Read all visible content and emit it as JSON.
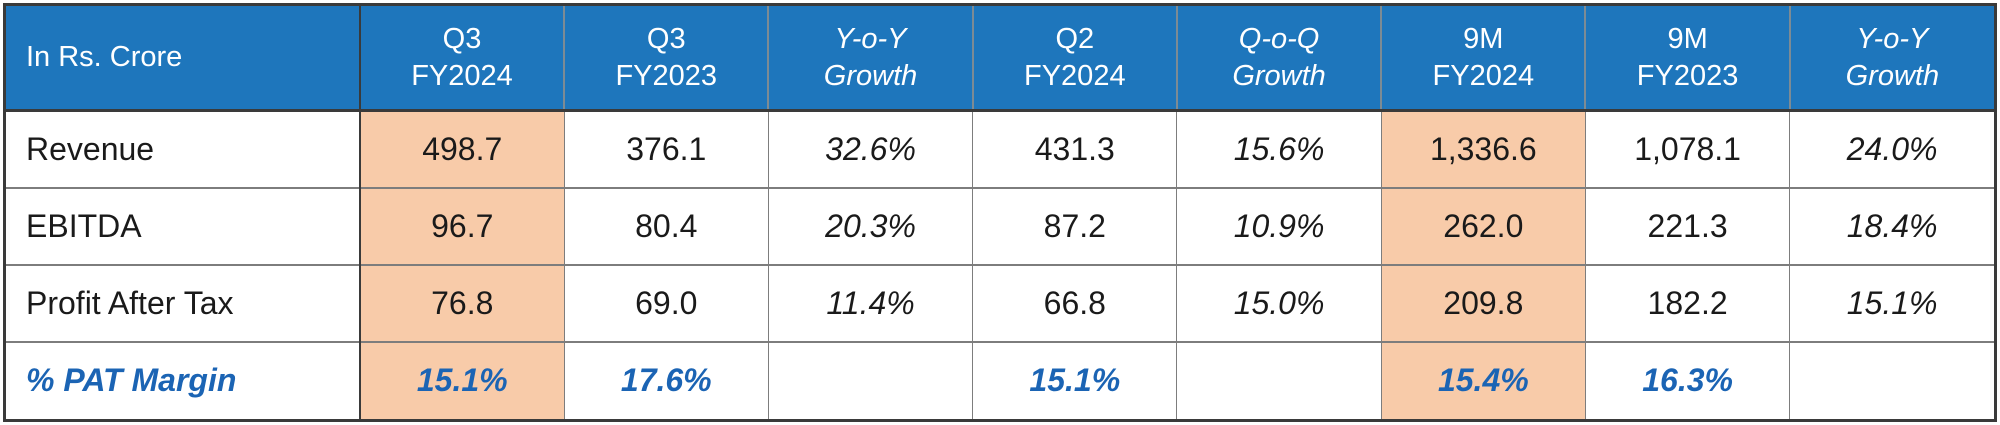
{
  "colors": {
    "header_bg": "#1e76bc",
    "header_text": "#ffffff",
    "highlight_bg": "#f8cba9",
    "margin_row_text": "#1b64b4",
    "grid_line": "#7d7d7d",
    "outer_border": "#3a3a3a",
    "body_text": "#1a1a1a"
  },
  "table": {
    "corner_label": "In Rs. Crore",
    "columns": [
      {
        "id": "q3-fy2024",
        "line1": "Q3",
        "line2": "FY2024",
        "italic": false,
        "highlight": true
      },
      {
        "id": "q3-fy2023",
        "line1": "Q3",
        "line2": "FY2023",
        "italic": false,
        "highlight": false
      },
      {
        "id": "yoy-growth-q",
        "line1": "Y-o-Y",
        "line2": "Growth",
        "italic": true,
        "highlight": false
      },
      {
        "id": "q2-fy2024",
        "line1": "Q2",
        "line2": "FY2024",
        "italic": false,
        "highlight": false
      },
      {
        "id": "qoq-growth",
        "line1": "Q-o-Q",
        "line2": "Growth",
        "italic": true,
        "highlight": false
      },
      {
        "id": "9m-fy2024",
        "line1": "9M",
        "line2": "FY2024",
        "italic": false,
        "highlight": true
      },
      {
        "id": "9m-fy2023",
        "line1": "9M",
        "line2": "FY2023",
        "italic": false,
        "highlight": false
      },
      {
        "id": "yoy-growth-9m",
        "line1": "Y-o-Y",
        "line2": "Growth",
        "italic": true,
        "highlight": false
      }
    ],
    "rows": [
      {
        "id": "revenue",
        "label": "Revenue",
        "margin_row": false,
        "values": [
          "498.7",
          "376.1",
          "32.6%",
          "431.3",
          "15.6%",
          "1,336.6",
          "1,078.1",
          "24.0%"
        ]
      },
      {
        "id": "ebitda",
        "label": "EBITDA",
        "margin_row": false,
        "values": [
          "96.7",
          "80.4",
          "20.3%",
          "87.2",
          "10.9%",
          "262.0",
          "221.3",
          "18.4%"
        ]
      },
      {
        "id": "profit-after-tax",
        "label": "Profit After Tax",
        "margin_row": false,
        "values": [
          "76.8",
          "69.0",
          "11.4%",
          "66.8",
          "15.0%",
          "209.8",
          "182.2",
          "15.1%"
        ]
      },
      {
        "id": "pat-margin",
        "label": "% PAT Margin",
        "margin_row": true,
        "values": [
          "15.1%",
          "17.6%",
          "",
          "15.1%",
          "",
          "15.4%",
          "16.3%",
          ""
        ]
      }
    ]
  }
}
